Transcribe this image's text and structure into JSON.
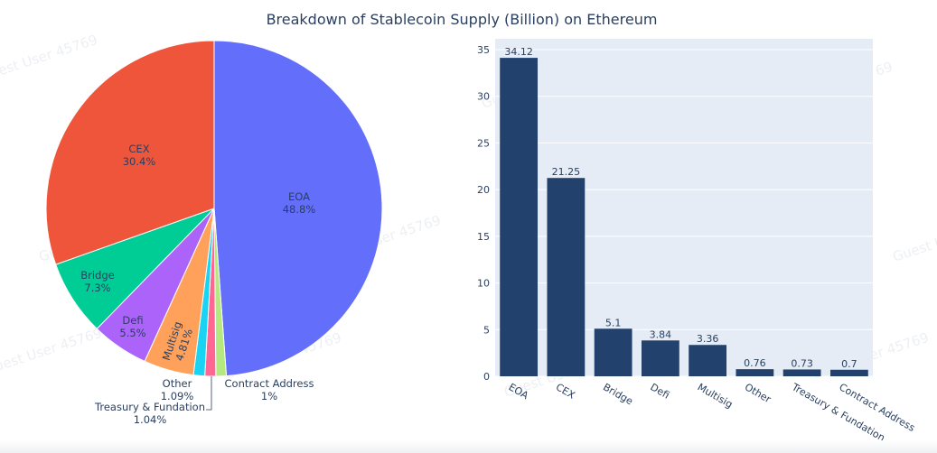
{
  "chart_title": "Breakdown of Stablecoin Supply (Billion) on Ethereum",
  "watermark_text": "Guest User 45769",
  "chart_data": [
    {
      "type": "pie",
      "slices": [
        {
          "label": "EOA",
          "percent_text": "48.8%",
          "value": 34.12,
          "color": "#636efa",
          "label_position": "inside"
        },
        {
          "label": "Contract Address",
          "percent_text": "1%",
          "value": 0.7,
          "color": "#b6e880",
          "label_position": "outside"
        },
        {
          "label": "Treasury & Fundation",
          "percent_text": "1.04%",
          "value": 0.73,
          "color": "#ff6692",
          "label_position": "outside"
        },
        {
          "label": "Other",
          "percent_text": "1.09%",
          "value": 0.76,
          "color": "#19d3f3",
          "label_position": "outside"
        },
        {
          "label": "Multisig",
          "percent_text": "4.81%",
          "value": 3.36,
          "color": "#ffa15a",
          "label_position": "inside"
        },
        {
          "label": "Defi",
          "percent_text": "5.5%",
          "value": 3.84,
          "color": "#ab63fa",
          "label_position": "inside"
        },
        {
          "label": "Bridge",
          "percent_text": "7.3%",
          "value": 5.1,
          "color": "#00cc96",
          "label_position": "inside"
        },
        {
          "label": "CEX",
          "percent_text": "30.4%",
          "value": 21.25,
          "color": "#ef553b",
          "label_position": "inside"
        }
      ]
    },
    {
      "type": "bar",
      "categories": [
        "EOA",
        "CEX",
        "Bridge",
        "Defi",
        "Multisig",
        "Other",
        "Treasury & Fundation",
        "Contract Address"
      ],
      "values": [
        34.12,
        21.25,
        5.1,
        3.84,
        3.36,
        0.76,
        0.73,
        0.7
      ],
      "value_labels": [
        "34.12",
        "21.25",
        "5.1",
        "3.84",
        "3.36",
        "0.76",
        "0.73",
        "0.7"
      ],
      "bar_color": "#22416c",
      "plot_background": "#e5ecf6",
      "ylim": [
        0,
        35
      ],
      "yticks": [
        0,
        5,
        10,
        15,
        20,
        25,
        30,
        35
      ],
      "grid": true,
      "xlabel": "",
      "ylabel": ""
    }
  ]
}
